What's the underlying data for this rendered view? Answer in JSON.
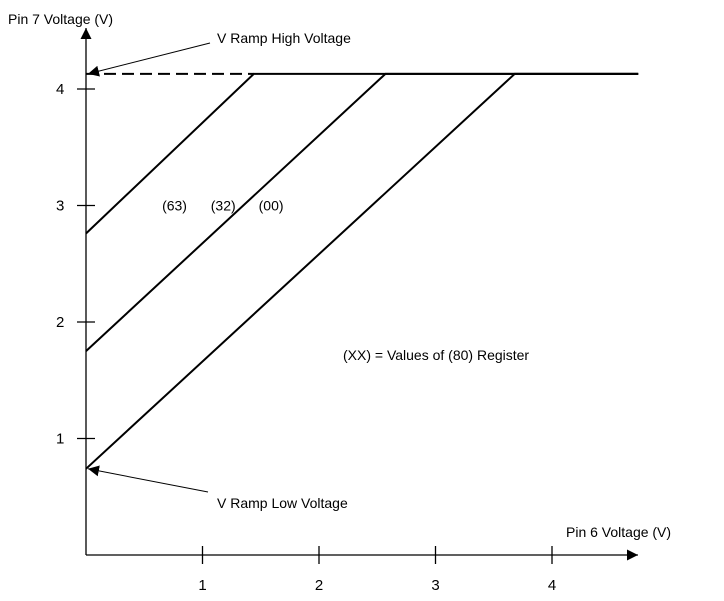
{
  "chart_data": {
    "type": "line",
    "xlabel": "Pin 6 Voltage (V)",
    "ylabel": "Pin 7 Voltage (V)",
    "xticks": [
      1,
      2,
      3,
      4
    ],
    "yticks": [
      1,
      2,
      3,
      4
    ],
    "xlim": [
      0,
      4.74
    ],
    "ylim": [
      0,
      4.6
    ],
    "v_ramp_high": 4.13,
    "v_ramp_low": 0.74,
    "series": [
      {
        "name": "(63)",
        "x": [
          0,
          1.44,
          4.74
        ],
        "y": [
          2.76,
          4.13,
          4.13
        ]
      },
      {
        "name": "(32)",
        "x": [
          0,
          2.57,
          4.74
        ],
        "y": [
          1.75,
          4.13,
          4.13
        ]
      },
      {
        "name": "(00)",
        "x": [
          0,
          3.68,
          4.74
        ],
        "y": [
          0.74,
          4.13,
          4.13
        ]
      }
    ],
    "annotations": {
      "high": "V Ramp High Voltage",
      "low": "V Ramp Low Voltage",
      "note": "(XX) = Values of (80) Register"
    }
  }
}
